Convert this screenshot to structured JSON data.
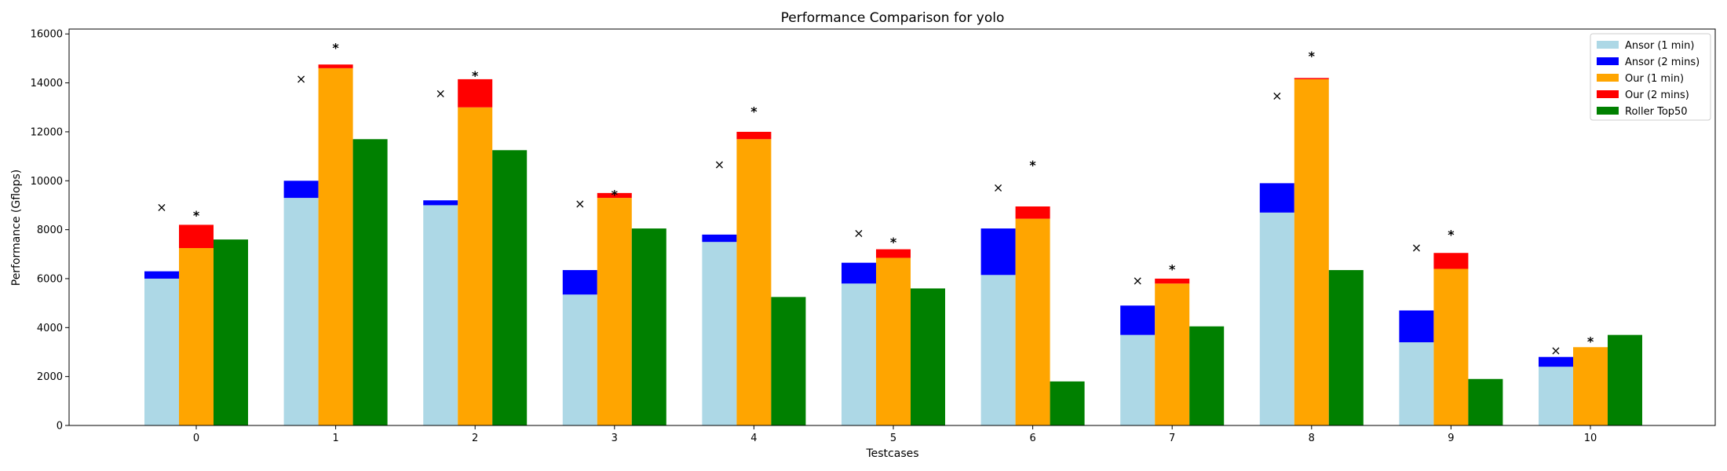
{
  "chart_data": {
    "type": "bar",
    "title": "Performance Comparison for yolo",
    "xlabel": "Testcases",
    "ylabel": "Performance (Gflops)",
    "ylim": [
      0,
      16200
    ],
    "yticks": [
      0,
      2000,
      4000,
      6000,
      8000,
      10000,
      12000,
      14000,
      16000
    ],
    "categories": [
      "0",
      "1",
      "2",
      "3",
      "4",
      "5",
      "6",
      "7",
      "8",
      "9",
      "10"
    ],
    "grid": false,
    "legend_position": "top-right",
    "series": [
      {
        "name": "Ansor (1 min)",
        "color": "#add8e6",
        "group": "ansor",
        "values": [
          6000,
          9300,
          9000,
          5350,
          7500,
          5800,
          6150,
          3700,
          8700,
          3400,
          2400
        ]
      },
      {
        "name": "Ansor (2 mins)",
        "color": "#0000ff",
        "group": "ansor",
        "values": [
          6300,
          10000,
          9200,
          6350,
          7800,
          6650,
          8050,
          4900,
          9900,
          4700,
          2800
        ]
      },
      {
        "name": "Our (1 min)",
        "color": "#ffa500",
        "group": "our",
        "values": [
          7250,
          14600,
          13000,
          9300,
          11700,
          6850,
          8450,
          5800,
          14150,
          6400,
          3200
        ]
      },
      {
        "name": "Our (2 mins)",
        "color": "#ff0000",
        "group": "our",
        "values": [
          8200,
          14750,
          14150,
          9500,
          12000,
          7200,
          8950,
          6000,
          14200,
          7050,
          3200
        ]
      },
      {
        "name": "Roller Top50",
        "color": "#008000",
        "group": "roller",
        "values": [
          7600,
          11700,
          11250,
          8050,
          5250,
          5600,
          1800,
          4050,
          6350,
          1900,
          3700
        ]
      }
    ],
    "annotations": {
      "ansor_marker_symbol": "×",
      "our_marker_symbol": "*",
      "ansor_marker_values": [
        8900,
        14150,
        13550,
        9050,
        10650,
        7850,
        9700,
        5900,
        13450,
        7250,
        3050
      ],
      "our_marker_values": [
        8700,
        15550,
        14400,
        9550,
        12950,
        7600,
        10750,
        6500,
        15200,
        7900,
        3550
      ]
    }
  }
}
